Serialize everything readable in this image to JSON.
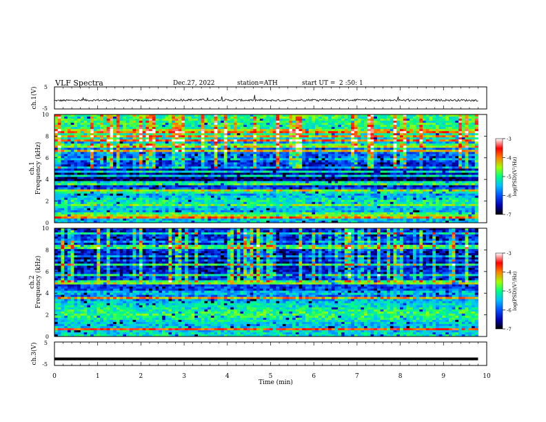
{
  "header": {
    "title": "VLF  Spectra",
    "date": "Dec.27, 2022",
    "station": "station=ATH",
    "start_label": "start  UT  =",
    "start_time": "2  :50: 1"
  },
  "x_axis": {
    "label": "Time  (min)",
    "ticks": [
      "0",
      "1",
      "2",
      "3",
      "4",
      "5",
      "6",
      "7",
      "8",
      "9",
      "10"
    ],
    "range": [
      0,
      10
    ],
    "data_end": 9.8
  },
  "panels": {
    "ch1": {
      "label": "ch.1(V)",
      "ticks": [
        "5",
        "-5"
      ],
      "range": [
        -5,
        5
      ]
    },
    "spec1": {
      "label_ch": "ch.1",
      "label_freq": "Frequency  (kHz)",
      "ticks": [
        "10",
        "8",
        "6",
        "4",
        "2",
        "0"
      ],
      "range": [
        0,
        10
      ]
    },
    "spec2": {
      "label_ch": "ch.2",
      "label_freq": "Frequency  (kHz)",
      "ticks": [
        "10",
        "8",
        "6",
        "4",
        "2",
        "0"
      ],
      "range": [
        0,
        10
      ]
    },
    "ch3": {
      "label": "ch.3(V)",
      "ticks": [
        "5",
        "-5"
      ],
      "range": [
        -5,
        5
      ]
    }
  },
  "colorbars": [
    {
      "label": "log(PSD)(V²/Hz)",
      "ticks": [
        "-3",
        "-4",
        "-5",
        "-6",
        "-7"
      ],
      "range": [
        -7,
        -3
      ]
    },
    {
      "label": "log(PSD)(V²/Hz)",
      "ticks": [
        "-3",
        "-4",
        "-5",
        "-6",
        "-7"
      ],
      "range": [
        -7,
        -3
      ]
    }
  ],
  "colors": {
    "colormap": [
      "#000000",
      "#0000b0",
      "#0050ff",
      "#00c0ff",
      "#00ff80",
      "#a0ff00",
      "#ff8000",
      "#ff0000",
      "#ffffff"
    ]
  },
  "chart_data": [
    {
      "type": "line",
      "name": "ch.1(V)",
      "xlabel": "Time  (min)",
      "ylabel": "ch.1(V)",
      "xlim": [
        0,
        10
      ],
      "ylim": [
        -5,
        5
      ],
      "mean_value": -1.0,
      "x": [
        0,
        1,
        2,
        3,
        4,
        5,
        6,
        7,
        8,
        9,
        9.8
      ],
      "values": [
        -1.2,
        -1.0,
        -1.1,
        -0.9,
        -1.0,
        -1.1,
        -0.9,
        -1.0,
        -1.1,
        -1.0,
        -1.1
      ]
    },
    {
      "type": "heatmap",
      "name": "ch.1",
      "xlabel": "Time  (min)",
      "ylabel": "Frequency  (kHz)",
      "xlim": [
        0,
        10
      ],
      "ylim": [
        0,
        10
      ],
      "color_range": [
        -7,
        -3
      ],
      "colorbar_label": "log(PSD)(V²/Hz)",
      "band_freqs_khz": [
        0,
        1,
        2,
        3,
        4,
        5,
        6,
        7,
        8,
        9,
        10
      ],
      "band_log_psd": [
        -5.4,
        -5.6,
        -5.1,
        -5.9,
        -6.7,
        -6.4,
        -6.0,
        -5.9,
        -5.2,
        -5.0,
        -4.9
      ]
    },
    {
      "type": "heatmap",
      "name": "ch.2",
      "xlabel": "Time  (min)",
      "ylabel": "Frequency  (kHz)",
      "xlim": [
        0,
        10
      ],
      "ylim": [
        0,
        10
      ],
      "color_range": [
        -7,
        -3
      ],
      "colorbar_label": "log(PSD)(V²/Hz)",
      "band_freqs_khz": [
        0,
        1,
        2,
        3,
        4,
        5,
        6,
        7,
        8,
        9,
        10
      ],
      "band_log_psd": [
        -5.2,
        -5.5,
        -4.9,
        -5.3,
        -6.0,
        -6.2,
        -6.3,
        -6.6,
        -6.3,
        -6.2,
        -6.4
      ]
    },
    {
      "type": "line",
      "name": "ch.3(V)",
      "xlabel": "Time  (min)",
      "ylabel": "ch.3(V)",
      "xlim": [
        0,
        10
      ],
      "ylim": [
        -5,
        5
      ],
      "x": [
        0,
        9.8
      ],
      "values": [
        -2.2,
        -2.2
      ]
    }
  ]
}
